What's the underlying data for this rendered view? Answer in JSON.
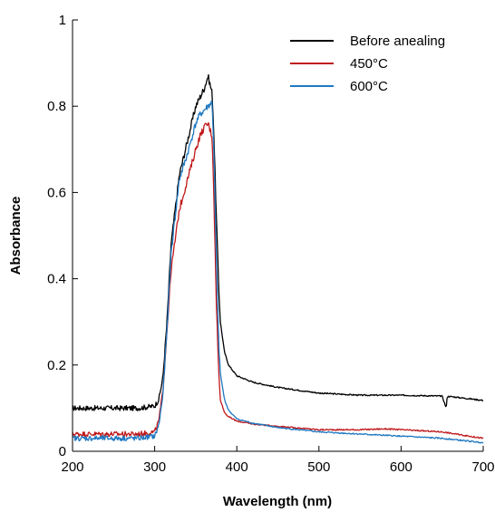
{
  "chart_data": {
    "type": "line",
    "title": "",
    "xlabel": "Wavelength (nm)",
    "ylabel": "Absorbance",
    "xlim": [
      200,
      700
    ],
    "ylim": [
      0,
      1
    ],
    "xticks": [
      "200",
      "300",
      "400",
      "500",
      "600",
      "700"
    ],
    "yticks": [
      "0",
      "0.2",
      "0.4",
      "0.6",
      "0.8",
      "1"
    ],
    "xtick_values": [
      200,
      300,
      400,
      500,
      600,
      700
    ],
    "ytick_values": [
      0,
      0.2,
      0.4,
      0.6,
      0.8,
      1
    ],
    "grid": false,
    "legend_position": "top-right",
    "series": [
      {
        "name": "Before anealing",
        "color": "#000000",
        "x": [
          200,
          220,
          240,
          260,
          280,
          300,
          305,
          310,
          315,
          320,
          330,
          340,
          350,
          355,
          360,
          365,
          370,
          372,
          375,
          378,
          380,
          385,
          390,
          400,
          420,
          450,
          500,
          550,
          600,
          650,
          655,
          656,
          657,
          660,
          700
        ],
        "y": [
          0.1,
          0.1,
          0.1,
          0.1,
          0.1,
          0.105,
          0.12,
          0.17,
          0.3,
          0.48,
          0.64,
          0.72,
          0.8,
          0.82,
          0.84,
          0.87,
          0.83,
          0.74,
          0.55,
          0.38,
          0.3,
          0.23,
          0.2,
          0.175,
          0.16,
          0.148,
          0.135,
          0.13,
          0.13,
          0.128,
          0.1,
          0.125,
          0.127,
          0.127,
          0.118
        ]
      },
      {
        "name": "450°C",
        "color": "#c0191b",
        "x": [
          200,
          220,
          240,
          260,
          280,
          300,
          305,
          310,
          315,
          320,
          330,
          340,
          350,
          355,
          360,
          365,
          370,
          372,
          375,
          378,
          380,
          385,
          390,
          400,
          420,
          450,
          500,
          550,
          580,
          600,
          650,
          700
        ],
        "y": [
          0.04,
          0.04,
          0.04,
          0.04,
          0.04,
          0.045,
          0.07,
          0.14,
          0.28,
          0.42,
          0.56,
          0.63,
          0.7,
          0.73,
          0.75,
          0.76,
          0.73,
          0.6,
          0.35,
          0.18,
          0.12,
          0.09,
          0.08,
          0.07,
          0.063,
          0.058,
          0.05,
          0.05,
          0.052,
          0.05,
          0.045,
          0.03
        ]
      },
      {
        "name": "600°C",
        "color": "#1f78c1",
        "x": [
          200,
          220,
          240,
          260,
          280,
          300,
          305,
          310,
          315,
          320,
          330,
          340,
          350,
          355,
          360,
          365,
          370,
          372,
          375,
          378,
          380,
          385,
          390,
          400,
          420,
          450,
          500,
          550,
          600,
          650,
          700
        ],
        "y": [
          0.03,
          0.03,
          0.03,
          0.03,
          0.03,
          0.035,
          0.06,
          0.13,
          0.28,
          0.46,
          0.63,
          0.69,
          0.76,
          0.78,
          0.79,
          0.8,
          0.81,
          0.7,
          0.45,
          0.25,
          0.18,
          0.12,
          0.095,
          0.075,
          0.065,
          0.055,
          0.045,
          0.04,
          0.035,
          0.03,
          0.02
        ]
      }
    ]
  }
}
